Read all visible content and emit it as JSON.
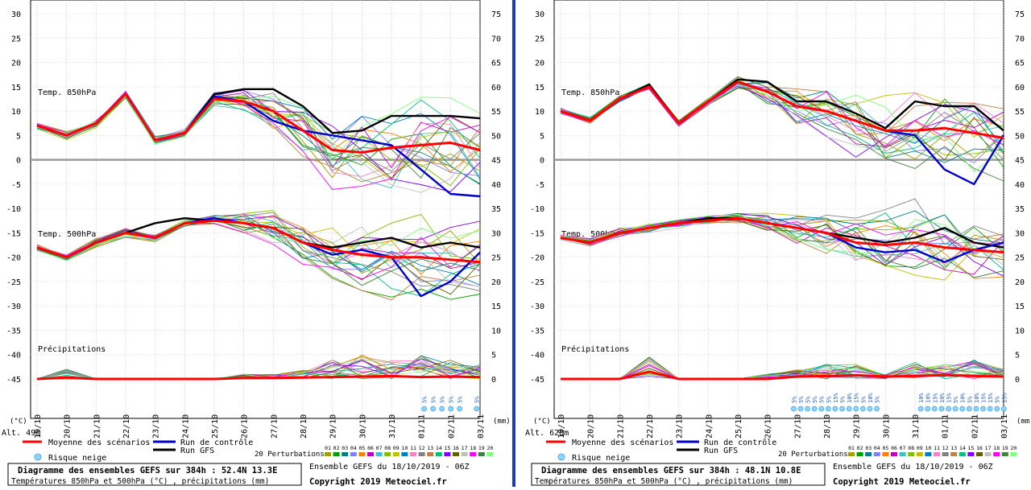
{
  "panels": [
    {
      "altitude": "Alt. 49m",
      "title": "Diagramme des ensembles GEFS sur 384h : 52.4N 13.3E",
      "subtitle": "Températures 850hPa et 500hPa (°C) , précipitations (mm)",
      "ensemble_label": "Ensemble GEFS du 18/10/2019 - 06Z",
      "copyright": "Copyright 2019 Meteociel.fr",
      "snow": [
        "5%",
        "5%",
        "5%",
        "5%",
        "5%",
        "5%"
      ]
    },
    {
      "altitude": "Alt. 628m",
      "title": "Diagramme des ensembles GEFS sur 384h : 48.1N 10.8E",
      "subtitle": "Températures 850hPa et 500hPa (°C) , précipitations (mm)",
      "ensemble_label": "Ensemble GEFS du 18/10/2019 - 06Z",
      "copyright": "Copyright 2019 Meteociel.fr",
      "snow": [
        "5%",
        "5%",
        "5%",
        "5%",
        "5%",
        "5%",
        "15%",
        "5%",
        "10%",
        "15%",
        "5%",
        "10%",
        "5%",
        "10%",
        "10%",
        "15%",
        "10%",
        "15%",
        "5%",
        "10%",
        "5%",
        "10%",
        "15%",
        "15%",
        "5%",
        "15%"
      ]
    }
  ],
  "labels": {
    "unit_c": "(°C)",
    "unit_mm": "(mm)",
    "t850": "Temp. 850hPa",
    "t500": "Temp. 500hPa",
    "precip": "Précipitations",
    "legend_mean": "Moyenne des scénarios",
    "legend_control": "Run de contrôle",
    "legend_gfs": "Run GFS",
    "legend_snow": "Risque neige",
    "perturbations": "20 Perturbations"
  },
  "perturbation_ids": [
    "01",
    "02",
    "03",
    "04",
    "05",
    "06",
    "07",
    "08",
    "09",
    "10",
    "11",
    "12",
    "13",
    "14",
    "15",
    "16",
    "17",
    "18",
    "19",
    "20"
  ],
  "colors": {
    "mean": "#ff0000",
    "control": "#0000cc",
    "gfs": "#000000",
    "zero": "#999999",
    "members": [
      "#a0a000",
      "#00a000",
      "#008080",
      "#8080ff",
      "#ff8000",
      "#c000c0",
      "#40c0c0",
      "#80c000",
      "#c0c000",
      "#0080c0",
      "#ff80c0",
      "#808080",
      "#c08040",
      "#00c080",
      "#8000ff",
      "#606000",
      "#c0c0c0",
      "#ff00ff",
      "#408040",
      "#80ff80"
    ]
  },
  "chart_data": [
    {
      "type": "line",
      "x": [
        "19/10",
        "20/10",
        "21/10",
        "22/10",
        "23/10",
        "24/10",
        "25/10",
        "26/10",
        "27/10",
        "28/10",
        "29/10",
        "30/10",
        "31/10",
        "01/11",
        "02/11",
        "03/11"
      ],
      "ylim_left": [
        -45,
        30
      ],
      "yticks_left": [
        30,
        25,
        20,
        15,
        10,
        5,
        0,
        -5,
        -10,
        -15,
        -20,
        -25,
        -30,
        -35,
        -40,
        -45
      ],
      "ylim_right": [
        0,
        75
      ],
      "yticks_right": [
        75,
        70,
        65,
        60,
        55,
        50,
        45,
        40,
        35,
        30,
        25,
        20,
        15,
        10,
        5,
        0
      ],
      "t850": {
        "mean": [
          7,
          5,
          7.5,
          13.5,
          4,
          5.5,
          12.5,
          12,
          10,
          6,
          2,
          1.5,
          2.5,
          3,
          3.5,
          2
        ],
        "control": [
          7,
          5,
          7.5,
          13.5,
          4,
          5.5,
          13,
          12,
          8,
          6,
          5,
          4,
          3,
          -2,
          -7,
          -7.5
        ],
        "gfs": [
          7,
          5,
          7.5,
          13.5,
          4,
          5.5,
          13.5,
          14.5,
          14.5,
          11,
          5.5,
          6,
          9,
          9,
          9,
          8.5
        ]
      },
      "t500": {
        "mean": [
          -18,
          -20,
          -17,
          -15,
          -16,
          -13,
          -12.5,
          -13,
          -14,
          -17,
          -18.5,
          -19.5,
          -20,
          -20,
          -20.5,
          -21
        ],
        "control": [
          -18,
          -20,
          -17,
          -15,
          -16,
          -13,
          -12,
          -13,
          -14,
          -17,
          -19.5,
          -18.5,
          -20,
          -28,
          -25,
          -19
        ],
        "gfs": [
          -18,
          -20,
          -17,
          -15,
          -13,
          -12,
          -12.5,
          -13,
          -14,
          -17,
          -18,
          -17,
          -16,
          -18,
          -17,
          -18
        ]
      },
      "precip_mean": [
        0,
        0.3,
        0,
        0,
        0,
        0,
        0,
        0.2,
        0.2,
        0.3,
        0.4,
        0.5,
        0.6,
        0.4,
        0.5,
        0.4
      ],
      "precip_peaks": [
        0,
        2,
        0,
        0,
        0,
        0,
        0,
        1,
        1,
        2,
        4,
        5,
        4,
        5,
        4,
        3
      ]
    },
    {
      "type": "line",
      "x": [
        "19/10",
        "20/10",
        "21/10",
        "22/10",
        "23/10",
        "24/10",
        "25/10",
        "26/10",
        "27/10",
        "28/10",
        "29/10",
        "30/10",
        "31/10",
        "01/11",
        "02/11",
        "03/11"
      ],
      "ylim_left": [
        -45,
        30
      ],
      "yticks_left": [
        30,
        25,
        20,
        15,
        10,
        5,
        0,
        -5,
        -10,
        -15,
        -20,
        -25,
        -30,
        -35,
        -40,
        -45
      ],
      "ylim_right": [
        0,
        75
      ],
      "yticks_right": [
        75,
        70,
        65,
        60,
        55,
        50,
        45,
        40,
        35,
        30,
        25,
        20,
        15,
        10,
        5,
        0
      ],
      "t850": {
        "mean": [
          10,
          8,
          12.5,
          15,
          7.5,
          12,
          16,
          14,
          11,
          10,
          8,
          6,
          6,
          6.5,
          5.5,
          4.5
        ],
        "control": [
          10,
          8,
          12.5,
          15,
          7.5,
          12,
          16,
          14,
          11,
          10,
          8,
          6,
          5,
          -2,
          -5,
          5
        ],
        "gfs": [
          10,
          8,
          12.5,
          15.5,
          7.5,
          12,
          16.5,
          16,
          12,
          12,
          9.5,
          6.5,
          12,
          11,
          11,
          6
        ]
      },
      "t500": {
        "mean": [
          -16,
          -17,
          -15,
          -14,
          -13,
          -12.5,
          -12,
          -13,
          -14,
          -15,
          -17,
          -17.5,
          -17,
          -18,
          -18.5,
          -19
        ],
        "control": [
          -16,
          -17,
          -15,
          -14,
          -13,
          -12.5,
          -12,
          -13,
          -14,
          -15,
          -18,
          -19,
          -18.5,
          -21,
          -18.5,
          -17
        ],
        "gfs": [
          -16,
          -17,
          -15,
          -14,
          -13,
          -12,
          -12,
          -13,
          -14,
          -15,
          -16,
          -17,
          -16,
          -14,
          -17,
          -18
        ]
      },
      "precip_mean": [
        0,
        0,
        0,
        1.5,
        0,
        0,
        0,
        0,
        0.5,
        0.6,
        0.8,
        0.5,
        0.6,
        0.8,
        0.6,
        0.5
      ],
      "precip_peaks": [
        0,
        0,
        0,
        4.5,
        0,
        0,
        0,
        1,
        2,
        3,
        3,
        1,
        4,
        3,
        4,
        2
      ]
    }
  ]
}
